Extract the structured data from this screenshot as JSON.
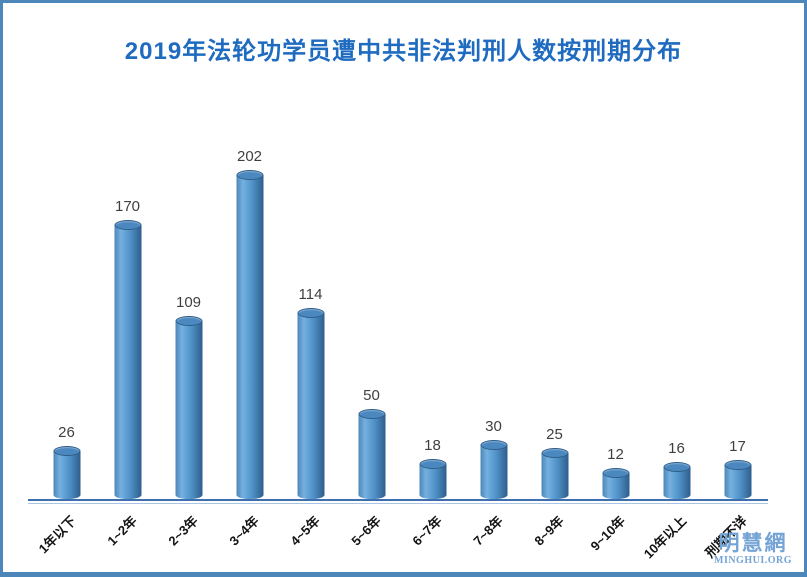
{
  "title": "2019年法轮功学员遭中共非法判刑人数按刑期分布",
  "watermark": {
    "name": "明慧網",
    "site": "MINGHUI.ORG"
  },
  "colors": {
    "title": "#1e6bc0",
    "border": "#4d86b8",
    "axis": "#3f6fae",
    "axis_light": "#a9c4e5",
    "bar_edge": "#4d87b8",
    "bar_light": "#74b0e0",
    "bar_mid": "#5092c8",
    "bar_dark": "#2e5e8c",
    "bar_top": "#4b88bf",
    "bar_top_rim": "#2e5c86",
    "value_label": "#3f3f3f",
    "category_label": "#141414",
    "watermark": "#74a3d6"
  },
  "chart_data": {
    "type": "bar",
    "title": "2019年法轮功学员遭中共非法判刑人数按刑期分布",
    "categories": [
      "1年以下",
      "1~2年",
      "2~3年",
      "3~4年",
      "4~5年",
      "5~6年",
      "6~7年",
      "7~8年",
      "8~9年",
      "9~10年",
      "10年以上",
      "刑期不详"
    ],
    "values": [
      26,
      170,
      109,
      202,
      114,
      50,
      18,
      30,
      25,
      12,
      16,
      17
    ],
    "xlabel": "",
    "ylabel": "",
    "ylim": [
      0,
      220
    ],
    "grid": false,
    "legend": false,
    "value_labels": true,
    "bar_style": "3d-cylinder"
  }
}
